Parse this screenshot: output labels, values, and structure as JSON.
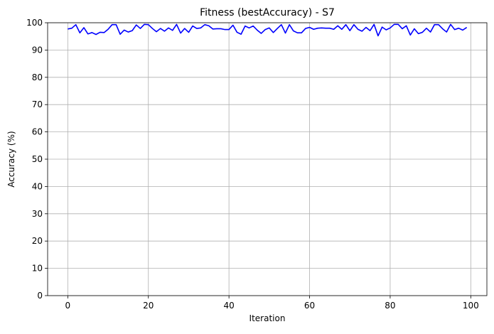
{
  "chart_data": {
    "type": "line",
    "title": "Fitness (bestAccuracy) - S7",
    "xlabel": "Iteration",
    "ylabel": "Accuracy (%)",
    "xlim": [
      -5,
      104
    ],
    "ylim": [
      0,
      100
    ],
    "xticks": [
      0,
      20,
      40,
      60,
      80,
      100
    ],
    "yticks": [
      0,
      10,
      20,
      30,
      40,
      50,
      60,
      70,
      80,
      90,
      100
    ],
    "grid": true,
    "line_color": "#0000ff",
    "series": [
      {
        "x": [
          0,
          1,
          2,
          3,
          4,
          5,
          6,
          7,
          8,
          9,
          10,
          11,
          12,
          13,
          14,
          15,
          16,
          17,
          18,
          19,
          20,
          21,
          22,
          23,
          24,
          25,
          26,
          27,
          28,
          29,
          30,
          31,
          32,
          33,
          34,
          35,
          36,
          37,
          38,
          39,
          40,
          41,
          42,
          43,
          44,
          45,
          46,
          47,
          48,
          49,
          50,
          51,
          52,
          53,
          54,
          55,
          56,
          57,
          58,
          59,
          60,
          61,
          62,
          63,
          64,
          65,
          66,
          67,
          68,
          69,
          70,
          71,
          72,
          73,
          74,
          75,
          76,
          77,
          78,
          79,
          80,
          81,
          82,
          83,
          84,
          85,
          86,
          87,
          88,
          89,
          90,
          91,
          92,
          93,
          94,
          95,
          96,
          97,
          98,
          99
        ],
        "y": [
          97.7,
          98.0,
          99.3,
          96.3,
          98.2,
          95.9,
          96.4,
          95.7,
          96.5,
          96.4,
          97.6,
          99.3,
          99.3,
          95.8,
          97.3,
          96.6,
          97.1,
          99.2,
          97.9,
          99.4,
          99.3,
          97.9,
          96.7,
          97.9,
          96.9,
          98.1,
          97.2,
          99.4,
          96.2,
          97.9,
          96.5,
          98.8,
          97.9,
          98.1,
          99.3,
          98.9,
          97.7,
          97.8,
          97.8,
          97.5,
          97.5,
          99.1,
          96.5,
          95.8,
          98.8,
          98.1,
          98.8,
          97.3,
          96.1,
          97.5,
          98.1,
          96.4,
          97.9,
          99.3,
          96.2,
          99.3,
          97.0,
          96.3,
          96.3,
          97.9,
          98.3,
          97.6,
          98.0,
          98.1,
          98.0,
          98.0,
          97.6,
          98.9,
          97.6,
          99.3,
          97.1,
          99.3,
          97.6,
          96.9,
          98.3,
          97.1,
          99.4,
          95.2,
          98.4,
          97.4,
          98.1,
          99.4,
          99.4,
          97.8,
          98.9,
          95.5,
          97.8,
          96.0,
          96.5,
          98.0,
          96.6,
          99.3,
          99.3,
          97.8,
          96.6,
          99.4,
          97.5,
          98.0,
          97.3,
          98.3
        ]
      }
    ]
  }
}
